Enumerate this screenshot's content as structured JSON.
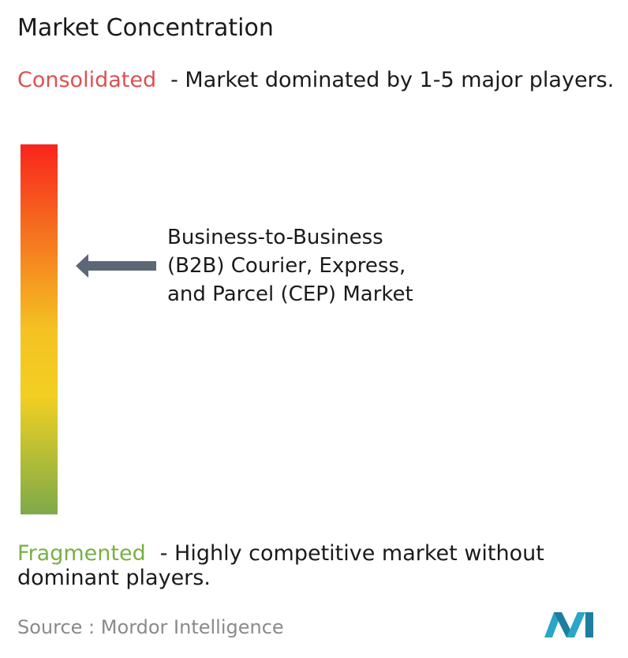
{
  "title": "Market Concentration",
  "consolidated": {
    "label": "Consolidated",
    "description": "- Market dominated by 1-5 major players."
  },
  "marker": {
    "lines": [
      "Business-to-Business",
      "(B2B) Courier, Express,",
      "and Parcel (CEP) Market"
    ]
  },
  "fragmented": {
    "label": "Fragmented",
    "description": "- Highly competitive market without dominant players."
  },
  "source": {
    "prefix": "Source :",
    "name": "Mordor Intelligence"
  }
}
